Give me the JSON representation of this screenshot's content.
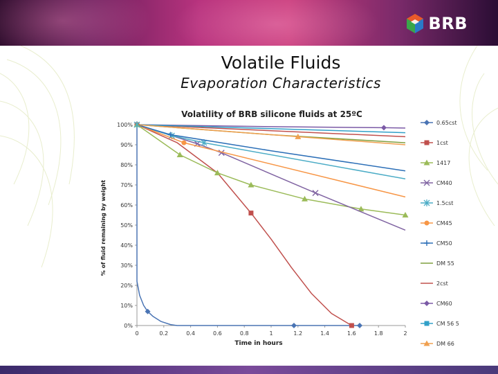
{
  "slide": {
    "title": "Volatile Fluids",
    "subtitle": "Evaporation Characteristics",
    "logo_text": "BRB",
    "colors": {
      "banner": "#b8337e",
      "footer": "#5a3a8a"
    }
  },
  "chart_data": {
    "type": "line",
    "title": "Volatility of BRB silicone fluids at 25ºC",
    "xlabel": "Time in hours",
    "ylabel": "% of fluid remaining by weight",
    "xlim": [
      0,
      2
    ],
    "ylim": [
      0,
      1
    ],
    "x_ticks": [
      "0",
      "0.2",
      "0.4",
      "0.6",
      "0.8",
      "1",
      "1.2",
      "1.4",
      "1.6",
      "1.8",
      "2"
    ],
    "y_ticks": [
      "0%",
      "10%",
      "20%",
      "30%",
      "40%",
      "50%",
      "60%",
      "70%",
      "80%",
      "90%",
      "100%"
    ],
    "grid": false,
    "legend_position": "right",
    "series": [
      {
        "name": "0.65cst",
        "color": "#4a74b4",
        "marker": "diamond",
        "points": [
          [
            0,
            1.0
          ],
          [
            0.0,
            0.22
          ],
          [
            0.02,
            0.15
          ],
          [
            0.05,
            0.1
          ],
          [
            0.08,
            0.07
          ],
          [
            0.12,
            0.045
          ],
          [
            0.18,
            0.02
          ],
          [
            0.25,
            0.005
          ],
          [
            0.3,
            0.0
          ],
          [
            1.17,
            0.0
          ],
          [
            1.66,
            0.0
          ]
        ],
        "marker_points": [
          [
            0.08,
            0.07
          ],
          [
            1.17,
            0.0
          ],
          [
            1.66,
            0.0
          ]
        ]
      },
      {
        "name": "1cst",
        "color": "#c0504d",
        "marker": "square",
        "points": [
          [
            0,
            1.0
          ],
          [
            0.3,
            0.91
          ],
          [
            0.6,
            0.76
          ],
          [
            0.85,
            0.56
          ],
          [
            1.0,
            0.43
          ],
          [
            1.15,
            0.29
          ],
          [
            1.3,
            0.16
          ],
          [
            1.45,
            0.06
          ],
          [
            1.6,
            0.0
          ]
        ],
        "marker_points": [
          [
            0.85,
            0.56
          ],
          [
            1.6,
            0.0
          ]
        ]
      },
      {
        "name": "1417",
        "color": "#9bbb59",
        "marker": "triangle",
        "points": [
          [
            0,
            1.0
          ],
          [
            0.32,
            0.85
          ],
          [
            0.6,
            0.76
          ],
          [
            0.85,
            0.7
          ],
          [
            1.25,
            0.63
          ],
          [
            1.67,
            0.58
          ],
          [
            2.0,
            0.55
          ]
        ],
        "marker_points": [
          [
            0.32,
            0.85
          ],
          [
            0.6,
            0.76
          ],
          [
            0.85,
            0.7
          ],
          [
            1.25,
            0.63
          ],
          [
            1.67,
            0.58
          ],
          [
            2.0,
            0.55
          ]
        ]
      },
      {
        "name": "CM40",
        "color": "#8064a2",
        "marker": "x",
        "points": [
          [
            0,
            1.0
          ],
          [
            0.45,
            0.905
          ],
          [
            0.63,
            0.86
          ],
          [
            1.33,
            0.66
          ],
          [
            2.0,
            0.475
          ]
        ],
        "marker_points": [
          [
            0.45,
            0.905
          ],
          [
            0.63,
            0.86
          ],
          [
            1.33,
            0.66
          ]
        ]
      },
      {
        "name": "1.5cst",
        "color": "#4bacc6",
        "marker": "asterisk",
        "points": [
          [
            0,
            1.0
          ],
          [
            0.26,
            0.945
          ],
          [
            0.5,
            0.91
          ],
          [
            2.0,
            0.73
          ]
        ],
        "marker_points": [
          [
            0.26,
            0.945
          ],
          [
            0.5,
            0.91
          ]
        ]
      },
      {
        "name": "CM45",
        "color": "#f79646",
        "marker": "circle",
        "points": [
          [
            0,
            1.0
          ],
          [
            0.35,
            0.91
          ],
          [
            2.0,
            0.64
          ]
        ],
        "marker_points": [
          [
            0.35,
            0.91
          ]
        ]
      },
      {
        "name": "CM50",
        "color": "#2c6fb7",
        "marker": "plus",
        "points": [
          [
            0,
            1.0
          ],
          [
            0.25,
            0.95
          ],
          [
            1.0,
            0.87
          ],
          [
            2.0,
            0.77
          ]
        ],
        "marker_points": [
          [
            0.25,
            0.95
          ]
        ]
      },
      {
        "name": "DM 55",
        "color": "#7f9f3f",
        "marker": "none",
        "points": [
          [
            0,
            1.0
          ],
          [
            1.0,
            0.95
          ],
          [
            2.0,
            0.91
          ]
        ],
        "marker_points": []
      },
      {
        "name": "2cst",
        "color": "#c0504d",
        "marker": "none",
        "points": [
          [
            0,
            1.0
          ],
          [
            1.0,
            0.97
          ],
          [
            2.0,
            0.94
          ]
        ],
        "marker_points": []
      },
      {
        "name": "CM60",
        "color": "#7b5aa6",
        "marker": "diamond",
        "points": [
          [
            0,
            1.0
          ],
          [
            1.0,
            0.99
          ],
          [
            1.84,
            0.985
          ],
          [
            2.0,
            0.983
          ]
        ],
        "marker_points": [
          [
            1.84,
            0.985
          ]
        ]
      },
      {
        "name": "CM 56 5",
        "color": "#31a0c8",
        "marker": "square",
        "points": [
          [
            0,
            1.0
          ],
          [
            1.0,
            0.98
          ],
          [
            2.0,
            0.96
          ]
        ],
        "marker_points": []
      },
      {
        "name": "DM 66",
        "color": "#f0a050",
        "marker": "triangle",
        "points": [
          [
            0,
            1.0
          ],
          [
            1.2,
            0.94
          ],
          [
            2.0,
            0.9
          ]
        ],
        "marker_points": [
          [
            1.2,
            0.94
          ]
        ]
      }
    ]
  }
}
